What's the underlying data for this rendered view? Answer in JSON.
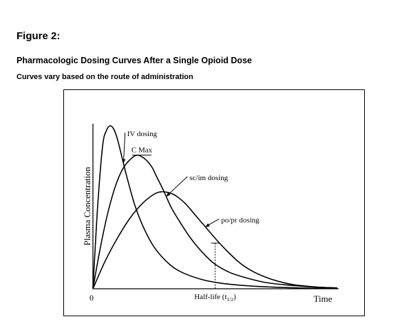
{
  "figure": {
    "label": "Figure 2:",
    "title": "Pharmacologic Dosing Curves After a Single Opioid Dose",
    "subtitle": "Curves vary based on the route of administration"
  },
  "chart_data": {
    "type": "line",
    "xlabel": "Time",
    "ylabel": "Plasma Concentration",
    "x_origin_label": "0",
    "xlim": [
      0,
      100
    ],
    "ylim": [
      0,
      100
    ],
    "grid": false,
    "legend": "none",
    "series": [
      {
        "name": "IV dosing",
        "x": [
          0,
          2,
          4,
          5.5,
          7,
          8.5,
          10,
          12,
          14,
          17,
          20,
          24,
          28,
          33,
          38,
          45,
          52,
          60,
          68,
          76,
          84,
          92,
          100
        ],
        "y": [
          0,
          52,
          88,
          97,
          100,
          98,
          92,
          80,
          68,
          52,
          40,
          28,
          20,
          13,
          9,
          5.5,
          3.5,
          2.2,
          1.4,
          0.9,
          0.5,
          0.3,
          0.2
        ]
      },
      {
        "name": "sc/im dosing",
        "x": [
          0,
          3,
          6,
          9,
          12,
          15,
          18,
          21,
          24,
          26,
          29,
          32,
          36,
          40,
          45,
          50,
          56,
          62,
          70,
          78,
          86,
          94,
          100
        ],
        "y": [
          0,
          25,
          46,
          62,
          73,
          79,
          82,
          80,
          75,
          69,
          60,
          50,
          40,
          31,
          22,
          15,
          10,
          7,
          4,
          2.5,
          1.5,
          0.8,
          0.5
        ]
      },
      {
        "name": "po/pr dosing",
        "x": [
          0,
          5,
          10,
          15,
          20,
          25,
          28,
          31,
          34,
          38,
          42,
          46,
          50,
          55,
          60,
          65,
          70,
          76,
          82,
          88,
          94,
          100
        ],
        "y": [
          0,
          17,
          31,
          43,
          52,
          58,
          59.5,
          59,
          57,
          52,
          45,
          38,
          31,
          23,
          16,
          11,
          7.5,
          4.5,
          2.5,
          1.5,
          0.8,
          0.5
        ]
      }
    ],
    "annotations": {
      "cmax": {
        "text": "C Max",
        "x": 20,
        "y": 82
      },
      "half_life": {
        "text_main": "Half-life (t",
        "text_sub": "1/2",
        "text_end": ")",
        "x": 50,
        "y": 28
      },
      "curve_labels": [
        {
          "text": "IV dosing",
          "series": "IV dosing",
          "point_x": 12.5,
          "text_x": 14,
          "text_y": 95
        },
        {
          "text": "sc/im dosing",
          "series": "sc/im dosing",
          "point_x": 30,
          "text_x": 39.5,
          "text_y": 68
        },
        {
          "text": "po/pr dosing",
          "series": "po/pr dosing",
          "point_x": 46,
          "text_x": 52.5,
          "text_y": 42
        }
      ]
    }
  }
}
